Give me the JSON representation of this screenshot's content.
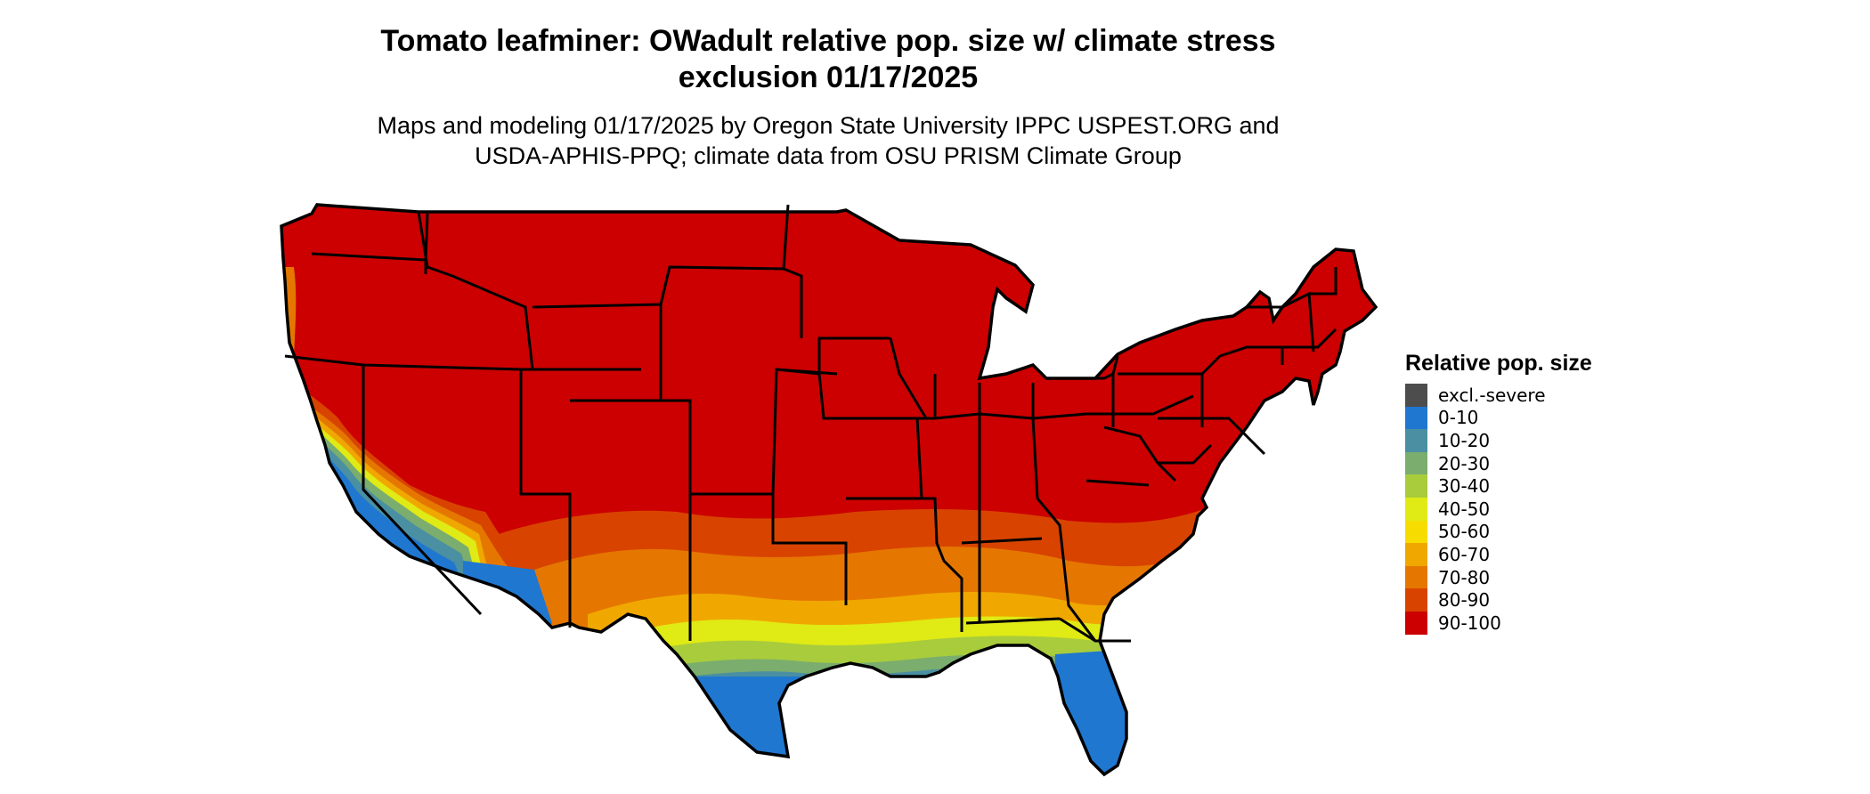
{
  "title": {
    "line1": "Tomato leafminer: OWadult relative pop. size w/ climate stress",
    "line2": "exclusion 01/17/2025"
  },
  "subtitle": {
    "line1": "Maps and modeling 01/17/2025 by Oregon State University IPPC USPEST.ORG and",
    "line2": "USDA-APHIS-PPQ; climate data from OSU PRISM Climate Group"
  },
  "legend": {
    "title": "Relative pop. size",
    "items": [
      {
        "label": "excl.-severe",
        "color": "#4d4d4d"
      },
      {
        "label": "0-10",
        "color": "#1f77d0"
      },
      {
        "label": "10-20",
        "color": "#4a8fa2"
      },
      {
        "label": "20-30",
        "color": "#7aad6e"
      },
      {
        "label": "30-40",
        "color": "#a8cc3c"
      },
      {
        "label": "40-50",
        "color": "#e0ea14"
      },
      {
        "label": "50-60",
        "color": "#f7dc00"
      },
      {
        "label": "60-70",
        "color": "#f0a800"
      },
      {
        "label": "70-80",
        "color": "#e57700"
      },
      {
        "label": "80-90",
        "color": "#d84400"
      },
      {
        "label": "90-100",
        "color": "#cc0000"
      }
    ]
  },
  "map": {
    "background_class": "90-100",
    "outline_color": "#000000"
  }
}
